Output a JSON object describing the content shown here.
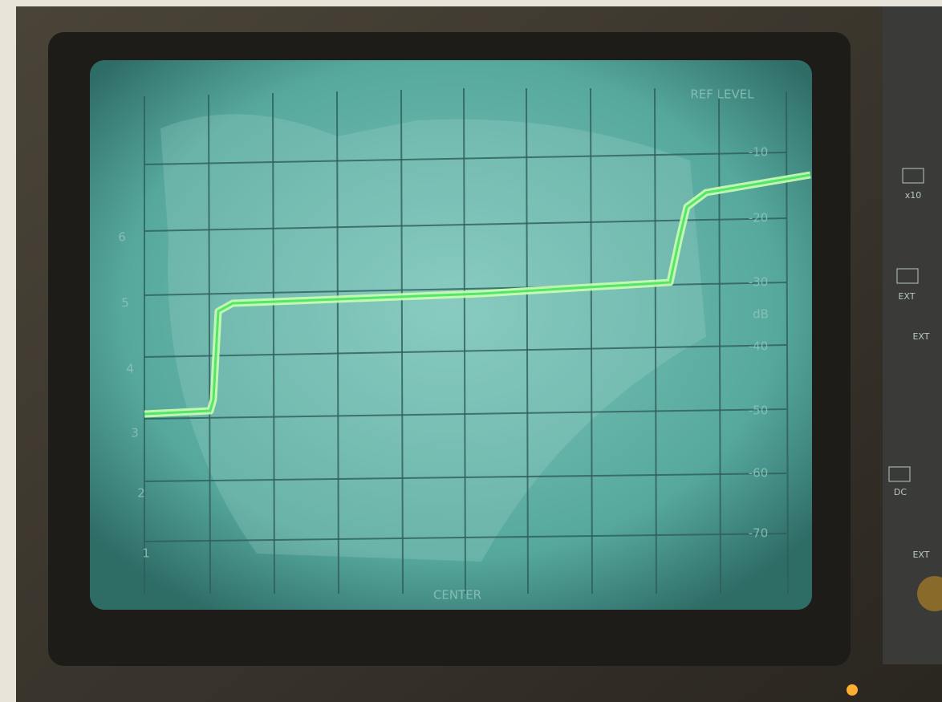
{
  "screen": {
    "ref_label": "REF LEVEL",
    "db_scale": [
      "-10",
      "-20",
      "-30",
      "-40",
      "-50",
      "-60",
      "-70"
    ],
    "db_unit": "dB",
    "center_label": "CENTER",
    "left_scale": [
      "6",
      "5",
      "4",
      "3",
      "2",
      "1"
    ]
  },
  "panel": {
    "labels": [
      "x10",
      "EXT",
      "EXT",
      "DC",
      "EXT"
    ]
  }
}
